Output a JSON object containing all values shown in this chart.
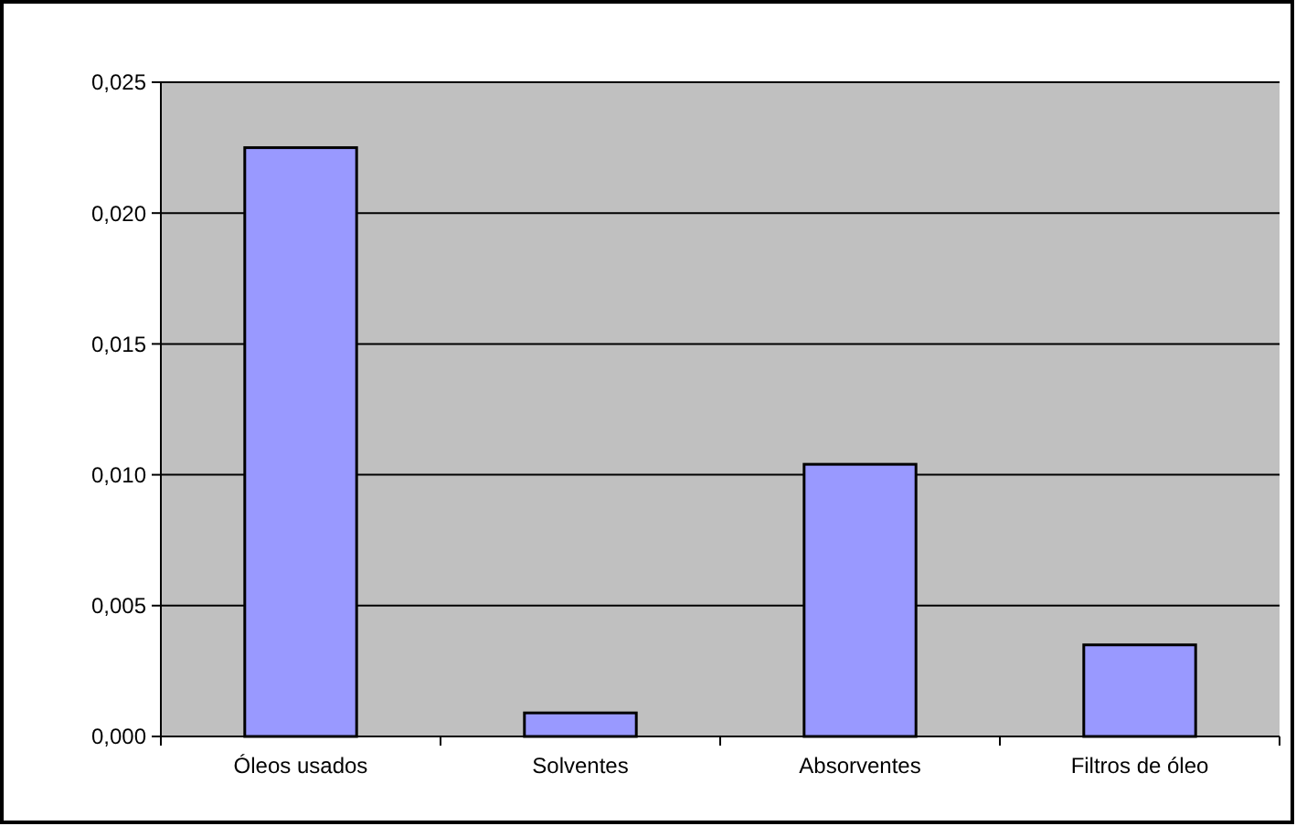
{
  "chart_data": {
    "type": "bar",
    "categories": [
      "Óleos usados",
      "Solventes",
      "Absorventes",
      "Filtros de óleo"
    ],
    "values": [
      0.0225,
      0.0009,
      0.0104,
      0.0035
    ],
    "color": "#9999ff",
    "ylim": [
      0,
      0.025
    ],
    "yticks": [
      {
        "value": 0,
        "label": "0,000"
      },
      {
        "value": 0.005,
        "label": "0,005"
      },
      {
        "value": 0.01,
        "label": "0,010"
      },
      {
        "value": 0.015,
        "label": "0,015"
      },
      {
        "value": 0.02,
        "label": "0,020"
      },
      {
        "value": 0.025,
        "label": "0,025"
      }
    ],
    "grid": "y"
  }
}
